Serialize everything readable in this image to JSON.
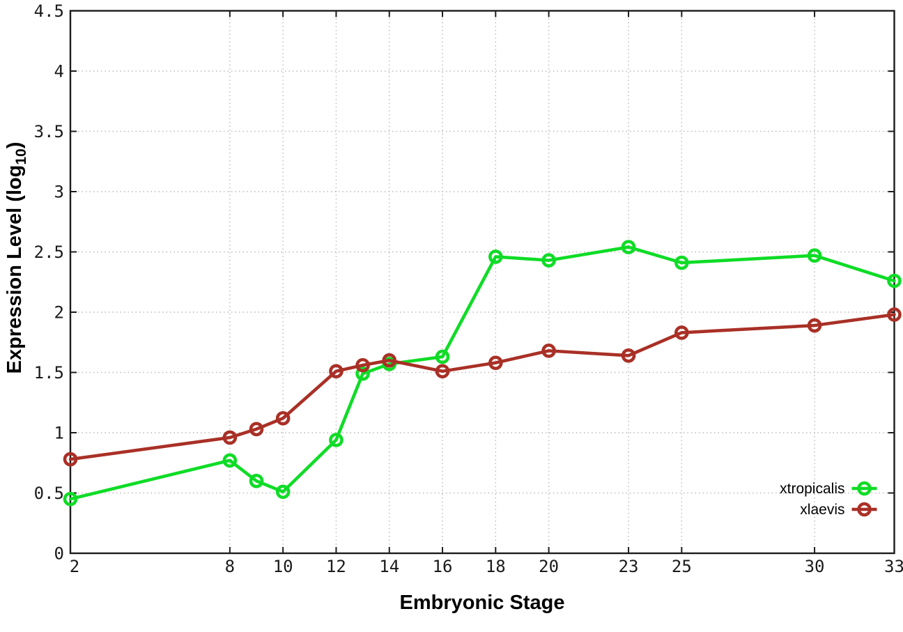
{
  "figure": {
    "background_color": "#ffffff",
    "border_color": "#1c1c1c",
    "grid_color": "#b9b9b9",
    "tick_color": "#1c1c1c",
    "text_color": "#000000"
  },
  "chart_data": {
    "type": "line",
    "title": "",
    "xlabel": "Embryonic Stage",
    "ylabel": "Expression Level (log10)",
    "ylabel_parts": {
      "prefix": "Expression Level (log",
      "sub": "10",
      "suffix": ")"
    },
    "xlim": [
      2,
      33
    ],
    "ylim": [
      0,
      4.5
    ],
    "x_ticks": [
      2,
      8,
      10,
      12,
      14,
      16,
      18,
      20,
      23,
      25,
      30,
      33
    ],
    "x_tick_labels": [
      "2",
      "8",
      "10",
      "12",
      "14",
      "16",
      "18",
      "20",
      "23",
      "25",
      "30",
      "33"
    ],
    "y_ticks": [
      0,
      0.5,
      1,
      1.5,
      2,
      2.5,
      3,
      3.5,
      4,
      4.5
    ],
    "y_tick_labels": [
      "0",
      "0.5",
      "1",
      "1.5",
      "2",
      "2.5",
      "3",
      "3.5",
      "4",
      "4.5"
    ],
    "grid": true,
    "legend_position": "inside-bottom-right",
    "x": [
      2,
      8,
      9,
      10,
      12,
      13,
      14,
      16,
      18,
      20,
      23,
      25,
      30,
      33
    ],
    "series": [
      {
        "name": "xtropicalis",
        "color": "#0fdc26",
        "values": [
          0.45,
          0.77,
          0.6,
          0.51,
          0.94,
          1.49,
          1.57,
          1.63,
          2.46,
          2.43,
          2.54,
          2.41,
          2.47,
          2.26
        ]
      },
      {
        "name": "xlaevis",
        "color": "#a93026",
        "values": [
          0.78,
          0.96,
          1.03,
          1.12,
          1.51,
          1.56,
          1.6,
          1.51,
          1.58,
          1.68,
          1.64,
          1.83,
          1.89,
          1.98
        ]
      }
    ]
  }
}
